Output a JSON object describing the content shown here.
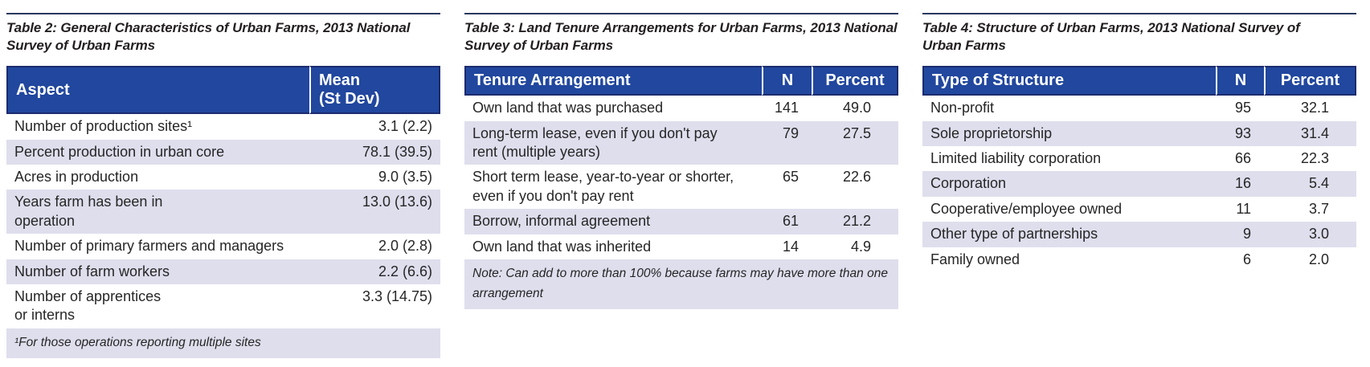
{
  "colors": {
    "header_bg": "#21479e",
    "header_border": "#1c2b6e",
    "header_text": "#ffffff",
    "row_alt_bg": "#dedeed",
    "top_rule": "#27395f",
    "body_text": "#262626"
  },
  "tables": [
    {
      "title": "Table 2: General Characteristics of Urban Farms, 2013 National\nSurvey of Urban Farms",
      "columns": [
        {
          "label": "Aspect"
        },
        {
          "label": "Mean\n(St Dev)"
        }
      ],
      "rows": [
        {
          "label": "Number of production sites¹",
          "value": "3.1 (2.2)"
        },
        {
          "label": "Percent production in urban core",
          "value": "78.1 (39.5)"
        },
        {
          "label": "Acres in production",
          "value": "9.0 (3.5)"
        },
        {
          "label": "Years farm has been in\noperation",
          "value": "13.0 (13.6)"
        },
        {
          "label": "Number of primary farmers and managers",
          "value": "2.0 (2.8)"
        },
        {
          "label": "Number of farm workers",
          "value": "2.2 (6.6)"
        },
        {
          "label": "Number of apprentices\nor interns",
          "value": "3.3 (14.75)"
        }
      ],
      "footnote": "¹For those operations reporting multiple sites"
    },
    {
      "title": "Table 3: Land Tenure Arrangements for Urban Farms, 2013 National\nSurvey of Urban Farms",
      "columns": [
        {
          "label": "Tenure Arrangement"
        },
        {
          "label": "N"
        },
        {
          "label": "Percent"
        }
      ],
      "rows": [
        {
          "label": "Own land that was purchased",
          "n": "141",
          "percent": "49.0"
        },
        {
          "label": "Long-term lease, even if you don't pay\nrent (multiple years)",
          "n": "79",
          "percent": "27.5"
        },
        {
          "label": "Short term lease, year-to-year or shorter,\neven if you don't pay rent",
          "n": "65",
          "percent": "22.6"
        },
        {
          "label": "Borrow, informal agreement",
          "n": "61",
          "percent": "21.2"
        },
        {
          "label": "Own land that was inherited",
          "n": "14",
          "percent": "4.9"
        }
      ],
      "footnote": "Note: Can add to more than 100% because farms may have more than one\narrangement"
    },
    {
      "title": "Table 4: Structure of Urban Farms, 2013 National Survey of\nUrban Farms",
      "columns": [
        {
          "label": "Type of Structure"
        },
        {
          "label": "N"
        },
        {
          "label": "Percent"
        }
      ],
      "rows": [
        {
          "label": "Non-profit",
          "n": "95",
          "percent": "32.1"
        },
        {
          "label": "Sole proprietorship",
          "n": "93",
          "percent": "31.4"
        },
        {
          "label": "Limited liability corporation",
          "n": "66",
          "percent": "22.3"
        },
        {
          "label": "Corporation",
          "n": "16",
          "percent": "5.4"
        },
        {
          "label": "Cooperative/employee owned",
          "n": "11",
          "percent": "3.7"
        },
        {
          "label": "Other type of partnerships",
          "n": "9",
          "percent": "3.0"
        },
        {
          "label": "Family owned",
          "n": "6",
          "percent": "2.0"
        }
      ]
    }
  ]
}
